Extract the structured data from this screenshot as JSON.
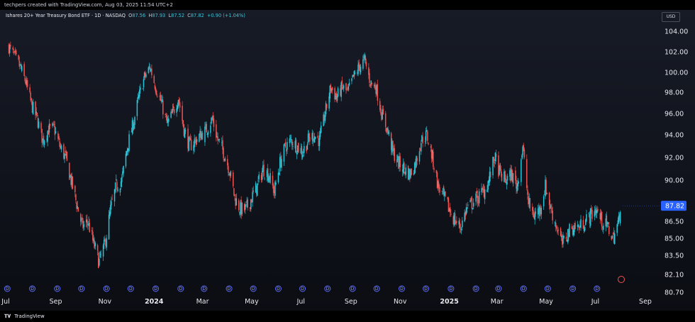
{
  "header": {
    "attribution": "techpers created with TradingView.com, Aug 03, 2025 11:54 UTC+2"
  },
  "legend": {
    "symbol": "Ishares 20+ Year Treasury Bond ETF · 1D · NASDAQ",
    "open_label": "O",
    "open": "87.56",
    "high_label": "H",
    "high": "87.93",
    "low_label": "L",
    "low": "87.52",
    "close_label": "C",
    "close": "87.82",
    "change": "+0.90 (+1.04%)"
  },
  "currency": "USD",
  "footer": {
    "brand": "TradingView",
    "logo": "tradingview-logo-icon"
  },
  "colors": {
    "up": "#26c6da",
    "down": "#ef5350",
    "background": "#131722",
    "accent": "#2962ff",
    "dividend": "#5b6cff"
  },
  "chart_data": {
    "type": "candlestick",
    "title": "Ishares 20+ Year Treasury Bond ETF · 1D · NASDAQ",
    "y_ticks": [
      {
        "value": 104,
        "label": "104.00"
      },
      {
        "value": 102,
        "label": "102.00"
      },
      {
        "value": 100,
        "label": "100.00"
      },
      {
        "value": 98,
        "label": "98.00"
      },
      {
        "value": 96,
        "label": "96.00"
      },
      {
        "value": 94,
        "label": "94.00"
      },
      {
        "value": 92,
        "label": "92.00"
      },
      {
        "value": 90,
        "label": "90.00"
      },
      {
        "value": 86.5,
        "label": "86.50"
      },
      {
        "value": 85,
        "label": "85.00"
      },
      {
        "value": 83.5,
        "label": "83.50"
      },
      {
        "value": 82.1,
        "label": "82.10"
      },
      {
        "value": 80.7,
        "label": "80.70"
      }
    ],
    "last_price": {
      "value": 87.82,
      "label": "87.82"
    },
    "x_ticks": [
      {
        "date": "2023-07",
        "label": "Jul",
        "bold": false
      },
      {
        "date": "2023-09",
        "label": "Sep",
        "bold": false
      },
      {
        "date": "2023-11",
        "label": "Nov",
        "bold": false
      },
      {
        "date": "2024-01",
        "label": "2024",
        "bold": true
      },
      {
        "date": "2024-03",
        "label": "Mar",
        "bold": false
      },
      {
        "date": "2024-05",
        "label": "May",
        "bold": false
      },
      {
        "date": "2024-07",
        "label": "Jul",
        "bold": false
      },
      {
        "date": "2024-09",
        "label": "Sep",
        "bold": false
      },
      {
        "date": "2024-11",
        "label": "Nov",
        "bold": false
      },
      {
        "date": "2025-01",
        "label": "2025",
        "bold": true
      },
      {
        "date": "2025-03",
        "label": "Mar",
        "bold": false
      },
      {
        "date": "2025-05",
        "label": "May",
        "bold": false
      },
      {
        "date": "2025-07",
        "label": "Jul",
        "bold": false
      },
      {
        "date": "2025-09",
        "label": "Sep",
        "bold": false
      }
    ],
    "dividend_marker_label": "D",
    "dividend_count": 25,
    "price_path": [
      [
        "2023-07-05",
        102.5
      ],
      [
        "2023-07-12",
        101.5
      ],
      [
        "2023-07-19",
        100.5
      ],
      [
        "2023-07-26",
        99.0
      ],
      [
        "2023-08-02",
        96.8
      ],
      [
        "2023-08-09",
        95.5
      ],
      [
        "2023-08-16",
        93.5
      ],
      [
        "2023-08-23",
        94.5
      ],
      [
        "2023-08-30",
        94.6
      ],
      [
        "2023-09-06",
        93.0
      ],
      [
        "2023-09-13",
        92.0
      ],
      [
        "2023-09-20",
        90.0
      ],
      [
        "2023-09-27",
        88.0
      ],
      [
        "2023-10-04",
        86.0
      ],
      [
        "2023-10-11",
        86.5
      ],
      [
        "2023-10-18",
        84.5
      ],
      [
        "2023-10-25",
        83.0
      ],
      [
        "2023-11-01",
        84.5
      ],
      [
        "2023-11-08",
        87.5
      ],
      [
        "2023-11-15",
        89.5
      ],
      [
        "2023-11-22",
        90.0
      ],
      [
        "2023-11-29",
        93.0
      ],
      [
        "2023-12-06",
        95.0
      ],
      [
        "2023-12-13",
        97.5
      ],
      [
        "2023-12-20",
        99.5
      ],
      [
        "2023-12-27",
        100.5
      ],
      [
        "2024-01-03",
        98.5
      ],
      [
        "2024-01-10",
        97.0
      ],
      [
        "2024-01-17",
        95.0
      ],
      [
        "2024-01-24",
        96.0
      ],
      [
        "2024-01-31",
        97.5
      ],
      [
        "2024-02-07",
        94.5
      ],
      [
        "2024-02-14",
        93.0
      ],
      [
        "2024-02-21",
        93.5
      ],
      [
        "2024-02-28",
        94.0
      ],
      [
        "2024-03-06",
        94.5
      ],
      [
        "2024-03-13",
        95.5
      ],
      [
        "2024-03-20",
        93.5
      ],
      [
        "2024-03-27",
        92.5
      ],
      [
        "2024-04-03",
        91.0
      ],
      [
        "2024-04-10",
        88.5
      ],
      [
        "2024-04-17",
        87.5
      ],
      [
        "2024-04-24",
        87.5
      ],
      [
        "2024-05-01",
        88.5
      ],
      [
        "2024-05-08",
        89.5
      ],
      [
        "2024-05-15",
        91.0
      ],
      [
        "2024-05-22",
        90.5
      ],
      [
        "2024-05-29",
        89.0
      ],
      [
        "2024-06-05",
        91.5
      ],
      [
        "2024-06-12",
        93.0
      ],
      [
        "2024-06-19",
        93.5
      ],
      [
        "2024-06-26",
        93.0
      ],
      [
        "2024-07-03",
        92.5
      ],
      [
        "2024-07-10",
        93.5
      ],
      [
        "2024-07-17",
        94.0
      ],
      [
        "2024-07-24",
        93.5
      ],
      [
        "2024-07-31",
        96.0
      ],
      [
        "2024-08-07",
        98.5
      ],
      [
        "2024-08-14",
        97.5
      ],
      [
        "2024-08-21",
        98.5
      ],
      [
        "2024-08-28",
        98.0
      ],
      [
        "2024-09-04",
        99.5
      ],
      [
        "2024-09-11",
        100.5
      ],
      [
        "2024-09-18",
        101.2
      ],
      [
        "2024-09-25",
        99.0
      ],
      [
        "2024-10-02",
        98.5
      ],
      [
        "2024-10-09",
        96.0
      ],
      [
        "2024-10-16",
        94.5
      ],
      [
        "2024-10-23",
        92.5
      ],
      [
        "2024-10-30",
        91.5
      ],
      [
        "2024-11-06",
        91.0
      ],
      [
        "2024-11-13",
        90.5
      ],
      [
        "2024-11-20",
        91.5
      ],
      [
        "2024-11-27",
        93.5
      ],
      [
        "2024-12-04",
        94.0
      ],
      [
        "2024-12-11",
        92.0
      ],
      [
        "2024-12-18",
        89.5
      ],
      [
        "2024-12-25",
        88.5
      ],
      [
        "2025-01-01",
        87.5
      ],
      [
        "2025-01-08",
        86.5
      ],
      [
        "2025-01-15",
        86.0
      ],
      [
        "2025-01-22",
        87.5
      ],
      [
        "2025-01-29",
        88.0
      ],
      [
        "2025-02-05",
        88.5
      ],
      [
        "2025-02-12",
        89.0
      ],
      [
        "2025-02-19",
        90.0
      ],
      [
        "2025-02-26",
        92.0
      ],
      [
        "2025-03-05",
        90.5
      ],
      [
        "2025-03-12",
        90.0
      ],
      [
        "2025-03-19",
        90.5
      ],
      [
        "2025-03-26",
        89.5
      ],
      [
        "2025-04-02",
        93.0
      ],
      [
        "2025-04-09",
        88.0
      ],
      [
        "2025-04-16",
        87.0
      ],
      [
        "2025-04-23",
        87.5
      ],
      [
        "2025-04-30",
        89.5
      ],
      [
        "2025-05-07",
        87.5
      ],
      [
        "2025-05-14",
        86.0
      ],
      [
        "2025-05-21",
        84.5
      ],
      [
        "2025-05-28",
        85.5
      ],
      [
        "2025-06-04",
        86.0
      ],
      [
        "2025-06-11",
        86.0
      ],
      [
        "2025-06-18",
        86.5
      ],
      [
        "2025-06-25",
        87.0
      ],
      [
        "2025-07-02",
        87.5
      ],
      [
        "2025-07-09",
        86.5
      ],
      [
        "2025-07-16",
        86.0
      ],
      [
        "2025-07-23",
        85.0
      ],
      [
        "2025-07-30",
        86.5
      ],
      [
        "2025-08-01",
        87.82
      ]
    ]
  }
}
